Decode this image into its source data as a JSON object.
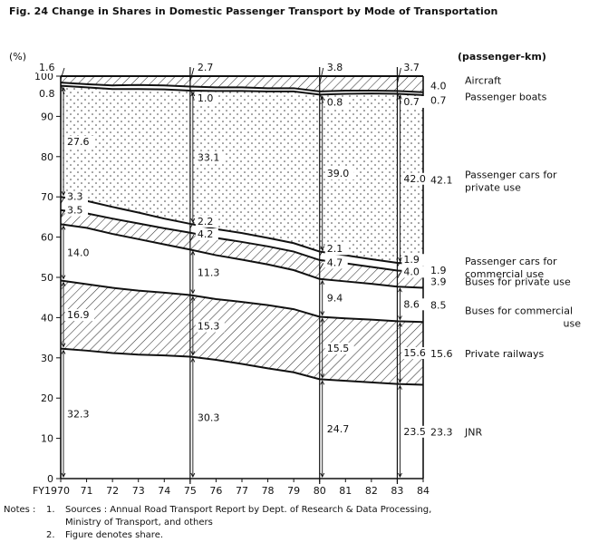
{
  "figure": {
    "title": "Fig. 24  Change in Shares in Domestic Passenger Transport by Mode of Transportation"
  },
  "notes": {
    "label": "Notes :",
    "items": [
      {
        "num": "1.",
        "lines": [
          "Sources : Annual Road Transport Report by Dept. of Research & Data Processing,",
          "Ministry of  Transport, and others"
        ]
      },
      {
        "num": "2.",
        "lines": [
          "Figure denotes share."
        ]
      }
    ]
  },
  "chart_data": {
    "type": "area",
    "stacked": true,
    "title": "",
    "xlabel": "",
    "ylabel": "(%)",
    "unit_label": "(passenger-km)",
    "x": [
      "FY1970",
      "71",
      "72",
      "73",
      "74",
      "75",
      "76",
      "77",
      "78",
      "79",
      "80",
      "81",
      "82",
      "83",
      "84"
    ],
    "x_values": [
      1970,
      1971,
      1972,
      1973,
      1974,
      1975,
      1976,
      1977,
      1978,
      1979,
      1980,
      1981,
      1982,
      1983,
      1984
    ],
    "ylim": [
      0,
      100
    ],
    "yticks": [
      "0",
      "10",
      "20",
      "30",
      "40",
      "50",
      "60",
      "70",
      "80",
      "90",
      "100"
    ],
    "series": [
      {
        "name": "JNR",
        "fill": "plain",
        "values": [
          32.3,
          31.8,
          31.2,
          30.8,
          30.6,
          30.3,
          29.5,
          28.5,
          27.4,
          26.4,
          24.7,
          24.3,
          23.9,
          23.5,
          23.3
        ]
      },
      {
        "name": "Private railways",
        "fill": "hatch",
        "values": [
          16.9,
          16.5,
          16.2,
          15.9,
          15.6,
          15.3,
          15.1,
          15.4,
          15.7,
          15.7,
          15.5,
          15.5,
          15.6,
          15.6,
          15.6
        ]
      },
      {
        "name": "Buses for commercial use",
        "fill": "plain",
        "values": [
          14.0,
          14.0,
          13.4,
          12.8,
          12.0,
          11.3,
          10.9,
          10.5,
          10.1,
          9.7,
          9.4,
          9.2,
          8.9,
          8.6,
          8.5
        ]
      },
      {
        "name": "Buses for private use",
        "fill": "hatch",
        "values": [
          3.5,
          3.6,
          3.8,
          3.9,
          4.0,
          4.2,
          4.3,
          4.4,
          4.5,
          4.6,
          4.7,
          4.5,
          4.2,
          4.0,
          3.9
        ]
      },
      {
        "name": "Passenger cars for commercial use",
        "fill": "plain",
        "values": [
          3.3,
          3.1,
          2.9,
          2.7,
          2.4,
          2.2,
          2.2,
          2.2,
          2.1,
          2.1,
          2.1,
          2.0,
          1.9,
          1.9,
          1.9
        ]
      },
      {
        "name": "Passenger cars for private use",
        "fill": "dots",
        "values": [
          27.6,
          28.2,
          29.3,
          30.7,
          32.1,
          33.1,
          34.3,
          35.3,
          36.4,
          37.7,
          39.0,
          40.1,
          41.2,
          42.0,
          42.1
        ]
      },
      {
        "name": "Passenger boats",
        "fill": "plain",
        "values": [
          0.8,
          0.8,
          0.9,
          1.0,
          1.0,
          1.0,
          0.9,
          0.9,
          0.8,
          0.8,
          0.8,
          0.8,
          0.7,
          0.7,
          0.7
        ]
      },
      {
        "name": "Aircraft",
        "fill": "hatch",
        "values": [
          1.6,
          2.0,
          2.3,
          2.2,
          2.3,
          2.7,
          2.8,
          2.8,
          3.0,
          3.0,
          3.8,
          3.6,
          3.7,
          3.7,
          4.0
        ]
      }
    ],
    "highlight_years": [
      "1970",
      "1975",
      "1980",
      "1983",
      "1984"
    ],
    "data_labels": [
      {
        "series": "JNR",
        "year": "1970",
        "text": "32.3"
      },
      {
        "series": "JNR",
        "year": "1975",
        "text": "30.3"
      },
      {
        "series": "JNR",
        "year": "1980",
        "text": "24.7"
      },
      {
        "series": "JNR",
        "year": "1983",
        "text": "23.5"
      },
      {
        "series": "Private railways",
        "year": "1970",
        "text": "16.9"
      },
      {
        "series": "Private railways",
        "year": "1975",
        "text": "15.3"
      },
      {
        "series": "Private railways",
        "year": "1980",
        "text": "15.5"
      },
      {
        "series": "Private railways",
        "year": "1983",
        "text": "15.6"
      },
      {
        "series": "Buses for commercial use",
        "year": "1970",
        "text": "14.0"
      },
      {
        "series": "Buses for commercial use",
        "year": "1975",
        "text": "11.3"
      },
      {
        "series": "Buses for commercial use",
        "year": "1980",
        "text": "9.4"
      },
      {
        "series": "Buses for commercial use",
        "year": "1983",
        "text": "8.6"
      },
      {
        "series": "Buses for private use",
        "year": "1970",
        "text": "3.5"
      },
      {
        "series": "Buses for private use",
        "year": "1975",
        "text": "4.2"
      },
      {
        "series": "Buses for private use",
        "year": "1980",
        "text": "4.7"
      },
      {
        "series": "Buses for private use",
        "year": "1983",
        "text": "4.0"
      },
      {
        "series": "Passenger cars for commercial use",
        "year": "1970",
        "text": "3.3"
      },
      {
        "series": "Passenger cars for commercial use",
        "year": "1975",
        "text": "2.2"
      },
      {
        "series": "Passenger cars for commercial use",
        "year": "1980",
        "text": "2.1"
      },
      {
        "series": "Passenger cars for commercial use",
        "year": "1983",
        "text": "1.9"
      },
      {
        "series": "Passenger cars for private use",
        "year": "1970",
        "text": "27.6"
      },
      {
        "series": "Passenger cars for private use",
        "year": "1975",
        "text": "33.1"
      },
      {
        "series": "Passenger cars for private use",
        "year": "1980",
        "text": "39.0"
      },
      {
        "series": "Passenger cars for private use",
        "year": "1983",
        "text": "42.0"
      },
      {
        "series": "Passenger boats",
        "year": "1970",
        "text": "0.8"
      },
      {
        "series": "Passenger boats",
        "year": "1975",
        "text": "1.0"
      },
      {
        "series": "Passenger boats",
        "year": "1980",
        "text": "0.8"
      },
      {
        "series": "Passenger boats",
        "year": "1983",
        "text": "0.7"
      },
      {
        "series": "Aircraft",
        "year": "1970",
        "text": "1.6"
      },
      {
        "series": "Aircraft",
        "year": "1975",
        "text": "2.7"
      },
      {
        "series": "Aircraft",
        "year": "1980",
        "text": "3.8"
      },
      {
        "series": "Aircraft",
        "year": "1983",
        "text": "3.7"
      }
    ],
    "end_labels": [
      {
        "series": "Aircraft",
        "value": "4.0",
        "label": [
          "Aircraft"
        ]
      },
      {
        "series": "Passenger boats",
        "value": "0.7",
        "label": [
          "Passenger boats"
        ]
      },
      {
        "series": "Passenger cars for private use",
        "value": "42.1",
        "label": [
          "Passenger cars for",
          "private use"
        ]
      },
      {
        "series": "Passenger cars for commercial use",
        "value": "1.9",
        "label": [
          "Passenger cars for",
          "commercial use"
        ]
      },
      {
        "series": "Buses for private use",
        "value": "3.9",
        "label": [
          "Buses for private use"
        ]
      },
      {
        "series": "Buses for commercial use",
        "value": "8.5",
        "label": [
          "Buses for commercial",
          "use"
        ]
      },
      {
        "series": "Private railways",
        "value": "15.6",
        "label": [
          "Private railways"
        ]
      },
      {
        "series": "JNR",
        "value": "23.3",
        "label": [
          "JNR"
        ]
      }
    ]
  }
}
